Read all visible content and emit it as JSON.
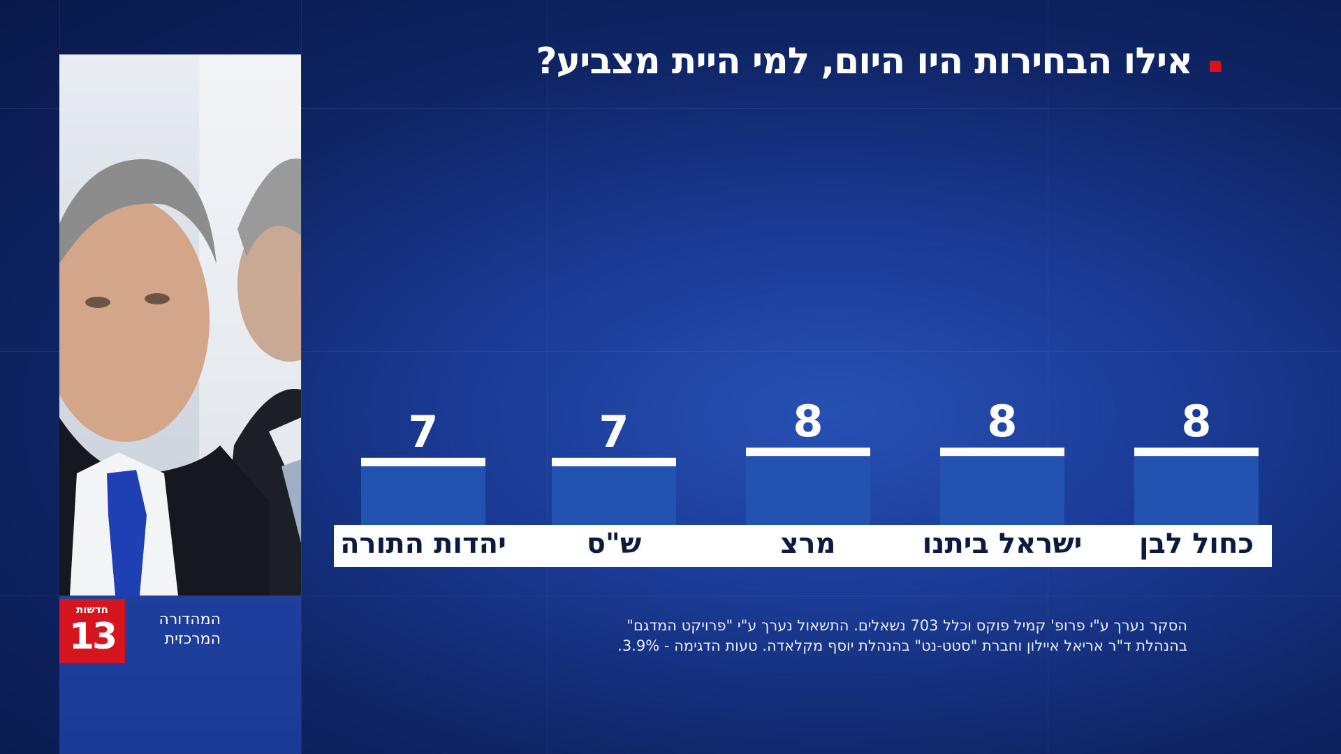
{
  "title": "אילו הבחירות היו היום, למי היית מצביע?",
  "colors": {
    "bar": "#2253b0",
    "bar_cap": "#ffffff",
    "title_marker": "#e0101b",
    "logo": "#d5161f"
  },
  "chart_data": {
    "type": "bar",
    "title": "אילו הבחירות היו היום, למי היית מצביע?",
    "categories": [
      "כחול לבן",
      "ישראל ביתנו",
      "מרצ",
      "ש\"ס",
      "יהדות התורה"
    ],
    "values": [
      8,
      8,
      8,
      7,
      7
    ],
    "value_labels": [
      "8",
      "8",
      "8",
      "7",
      "7"
    ],
    "order": "right-to-left",
    "grid": false,
    "legend": "none"
  },
  "footnote": {
    "line1": "הסקר נערך ע\"י פרופ' קמיל פוקס וכלל 703 נשאלים. התשאול נערך ע\"י \"פרויקט המדגם\"",
    "line2": "בהנהלת ד\"ר אריאל איילון וחברת \"סטט-נט\" בהנהלת יוסף מקלאדה. טעות הדגימה - 3.9%."
  },
  "channel": {
    "logo_small": "חדשות",
    "logo_big": "13",
    "line1": "המהדורה",
    "line2": "המרכזית"
  }
}
